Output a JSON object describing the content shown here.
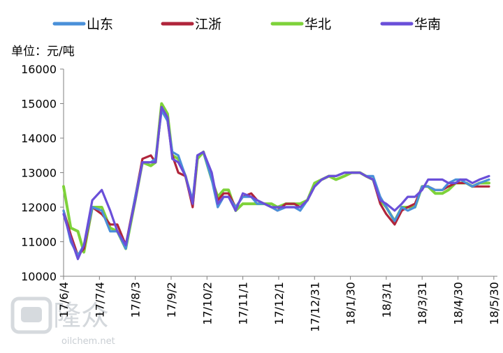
{
  "chart_data": {
    "type": "line",
    "unit_label": "单位：元/吨",
    "ylim": [
      10000,
      16000
    ],
    "yticks": [
      10000,
      11000,
      12000,
      13000,
      14000,
      15000,
      16000
    ],
    "x_tick_labels": [
      "17/6/4",
      "17/7/4",
      "17/8/3",
      "17/9/2",
      "17/10/2",
      "17/11/1",
      "17/12/1",
      "17/12/31",
      "18/1/30",
      "18/3/1",
      "18/3/31",
      "18/4/30",
      "18/5/30"
    ],
    "x_tick_days": [
      0,
      30,
      60,
      90,
      120,
      150,
      180,
      210,
      240,
      270,
      300,
      330,
      360
    ],
    "x_range_days": [
      0,
      363
    ],
    "grid": false,
    "legend_position": "top",
    "series": [
      {
        "name": "山东",
        "color": "#4a90d9",
        "x_days": [
          0,
          6,
          12,
          17,
          24,
          32,
          39,
          45,
          52,
          60,
          66,
          73,
          77,
          82,
          87,
          91,
          96,
          102,
          108,
          112,
          117,
          124,
          129,
          134,
          138,
          144,
          150,
          157,
          162,
          168,
          174,
          179,
          186,
          193,
          198,
          204,
          210,
          216,
          222,
          228,
          235,
          241,
          248,
          253,
          259,
          265,
          270,
          277,
          283,
          288,
          294,
          300,
          305,
          311,
          317,
          322,
          328,
          332,
          337,
          342,
          348,
          356
        ],
        "values": [
          11900,
          11000,
          10600,
          10900,
          12000,
          11900,
          11300,
          11300,
          10800,
          12300,
          13300,
          13300,
          13400,
          14800,
          14500,
          13600,
          13500,
          12900,
          12200,
          13500,
          13600,
          12800,
          12000,
          12300,
          12300,
          12000,
          12300,
          12300,
          12100,
          12100,
          12000,
          11900,
          12000,
          12000,
          11900,
          12200,
          12600,
          12800,
          12900,
          12900,
          13000,
          13000,
          13000,
          12900,
          12900,
          12300,
          12000,
          11600,
          12000,
          11900,
          12000,
          12600,
          12600,
          12500,
          12500,
          12700,
          12800,
          12800,
          12700,
          12600,
          12700,
          12800
        ]
      },
      {
        "name": "江浙",
        "color": "#b0253b",
        "x_days": [
          0,
          6,
          12,
          17,
          24,
          32,
          39,
          45,
          52,
          60,
          66,
          73,
          77,
          82,
          87,
          91,
          96,
          102,
          108,
          112,
          117,
          124,
          129,
          134,
          138,
          144,
          150,
          157,
          162,
          168,
          174,
          179,
          186,
          193,
          198,
          204,
          210,
          216,
          222,
          228,
          235,
          241,
          248,
          253,
          259,
          265,
          270,
          277,
          283,
          288,
          294,
          300,
          305,
          311,
          317,
          322,
          328,
          332,
          337,
          342,
          348,
          356
        ],
        "values": [
          11900,
          11200,
          10600,
          10800,
          12000,
          11800,
          11500,
          11500,
          10900,
          12300,
          13400,
          13500,
          13300,
          14900,
          14500,
          13500,
          13000,
          12900,
          12000,
          13500,
          13600,
          12900,
          12200,
          12400,
          12400,
          12000,
          12300,
          12400,
          12200,
          12100,
          12000,
          11900,
          12100,
          12100,
          12000,
          12200,
          12600,
          12800,
          12900,
          12900,
          13000,
          13000,
          13000,
          12900,
          12800,
          12100,
          11800,
          11500,
          11900,
          12000,
          12100,
          12600,
          12600,
          12500,
          12500,
          12600,
          12700,
          12700,
          12700,
          12600,
          12600,
          12600
        ]
      },
      {
        "name": "华北",
        "color": "#7ed23a",
        "x_days": [
          0,
          6,
          12,
          17,
          24,
          32,
          39,
          45,
          52,
          60,
          66,
          73,
          77,
          82,
          87,
          91,
          96,
          102,
          108,
          112,
          117,
          124,
          129,
          134,
          138,
          144,
          150,
          157,
          162,
          168,
          174,
          179,
          186,
          193,
          198,
          204,
          210,
          216,
          222,
          228,
          235,
          241,
          248,
          253,
          259,
          265,
          270,
          277,
          283,
          288,
          294,
          300,
          305,
          311,
          317,
          322,
          328,
          332,
          337,
          342,
          348,
          356
        ],
        "values": [
          12600,
          11400,
          11300,
          10700,
          12000,
          12000,
          11400,
          11300,
          10800,
          12200,
          13300,
          13200,
          13300,
          15000,
          14700,
          13500,
          13400,
          12900,
          12100,
          13400,
          13600,
          12800,
          12300,
          12500,
          12500,
          11900,
          12100,
          12100,
          12100,
          12100,
          12100,
          12000,
          12100,
          12100,
          12100,
          12200,
          12700,
          12800,
          12900,
          12800,
          12900,
          13000,
          13000,
          12900,
          12800,
          12200,
          12000,
          11600,
          12000,
          12000,
          12000,
          12600,
          12600,
          12400,
          12400,
          12500,
          12700,
          12700,
          12700,
          12600,
          12700,
          12700
        ]
      },
      {
        "name": "华南",
        "color": "#6a4fd9",
        "x_days": [
          0,
          6,
          12,
          17,
          24,
          32,
          39,
          45,
          52,
          60,
          66,
          73,
          77,
          82,
          87,
          91,
          96,
          102,
          108,
          112,
          117,
          124,
          129,
          134,
          138,
          144,
          150,
          157,
          162,
          168,
          174,
          179,
          186,
          193,
          198,
          204,
          210,
          216,
          222,
          228,
          235,
          241,
          248,
          253,
          259,
          265,
          270,
          277,
          283,
          288,
          294,
          300,
          305,
          311,
          317,
          322,
          328,
          332,
          337,
          342,
          348,
          356
        ],
        "values": [
          11800,
          11100,
          10500,
          10900,
          12200,
          12500,
          11900,
          11300,
          10900,
          12200,
          13300,
          13300,
          13300,
          14900,
          14600,
          13400,
          13300,
          12900,
          12100,
          13500,
          13600,
          13000,
          12100,
          12300,
          12300,
          11900,
          12400,
          12300,
          12200,
          12100,
          12000,
          12000,
          12000,
          12000,
          12000,
          12200,
          12600,
          12800,
          12900,
          12900,
          13000,
          13000,
          13000,
          12900,
          12800,
          12200,
          12100,
          11900,
          12100,
          12300,
          12300,
          12500,
          12800,
          12800,
          12800,
          12700,
          12700,
          12800,
          12800,
          12700,
          12800,
          12900
        ]
      }
    ]
  },
  "watermark": {
    "brand": "隆众",
    "site": "oilchem.net"
  }
}
